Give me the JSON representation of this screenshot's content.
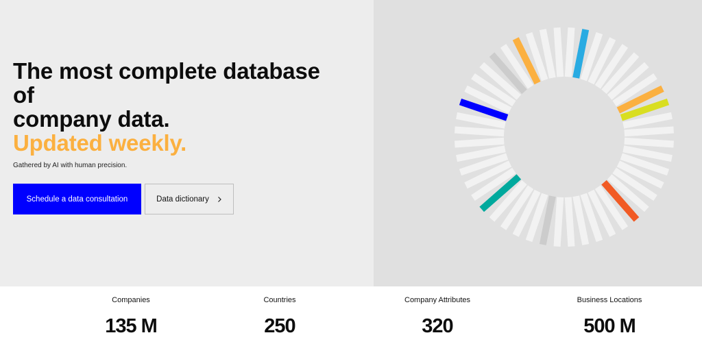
{
  "hero": {
    "headline_lines": [
      "The most complete database",
      "of",
      "company data."
    ],
    "headline_accent": "Updated weekly.",
    "subtitle": "Gathered by AI with human precision.",
    "primary_button": "Schedule a data consultation",
    "secondary_button": "Data dictionary",
    "secondary_icon": "chevron-right-icon"
  },
  "colors": {
    "accent": "#fbb040",
    "primary": "#0000ff",
    "bar_default": "#f2f2f2",
    "panel": "#e0e0e0"
  },
  "ring": {
    "bar_count": 48,
    "highlighted_bars": [
      {
        "index": 1,
        "color": "#29abe2"
      },
      {
        "index": 8,
        "color": "#fbb040"
      },
      {
        "index": 9,
        "color": "#d9de21"
      },
      {
        "index": 18,
        "color": "#f15a24"
      },
      {
        "index": 25,
        "color": "#cccccc"
      },
      {
        "index": 30,
        "color": "#00a99d"
      },
      {
        "index": 38,
        "color": "#0000ff"
      },
      {
        "index": 42,
        "color": "#cccccc"
      },
      {
        "index": 44,
        "color": "#fbb040"
      }
    ]
  },
  "stats": [
    {
      "label": "Companies",
      "value": "135 M"
    },
    {
      "label": "Countries",
      "value": "250"
    },
    {
      "label": "Company Attributes",
      "value": "320"
    },
    {
      "label": "Business Locations",
      "value": "500 M"
    }
  ]
}
